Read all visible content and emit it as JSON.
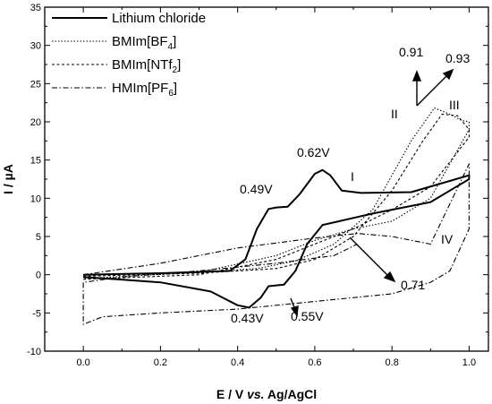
{
  "chart_data": {
    "type": "line",
    "xlabel": "E / V vs. Ag/AgCl",
    "xlabel_parts": [
      "E / V ",
      "vs.",
      " Ag/AgCl"
    ],
    "ylabel": "I / µA",
    "xlim": [
      -0.1,
      1.05
    ],
    "ylim": [
      -10,
      35
    ],
    "xticks": [
      0.0,
      0.2,
      0.4,
      0.6,
      0.8,
      1.0
    ],
    "xtick_labels": [
      "0.0",
      "0.2",
      "0.4",
      "0.6",
      "0.8",
      "1.0"
    ],
    "yticks": [
      -10,
      -5,
      0,
      5,
      10,
      15,
      20,
      25,
      30,
      35
    ],
    "ytick_labels": [
      "-10",
      "-5",
      "0",
      "5",
      "10",
      "15",
      "20",
      "25",
      "30",
      "35"
    ],
    "grid": false,
    "legend_position": "top-left",
    "series": [
      {
        "name": "Lithium chloride",
        "name_parts": [
          "Lithium chloride"
        ],
        "style": "solid",
        "x": [
          0.0,
          0.2,
          0.38,
          0.42,
          0.45,
          0.48,
          0.5,
          0.53,
          0.56,
          0.6,
          0.62,
          0.64,
          0.67,
          0.72,
          0.85,
          1.0,
          1.0,
          0.9,
          0.75,
          0.62,
          0.58,
          0.55,
          0.52,
          0.48,
          0.46,
          0.43,
          0.4,
          0.33,
          0.2,
          0.0
        ],
        "y": [
          0.0,
          0.2,
          0.5,
          2.0,
          6.0,
          8.6,
          8.8,
          8.9,
          10.5,
          13.2,
          13.7,
          13.0,
          11.0,
          10.7,
          10.8,
          13.0,
          12.5,
          9.5,
          8.0,
          6.5,
          4.0,
          0.5,
          -1.3,
          -1.5,
          -3.0,
          -4.3,
          -4.0,
          -2.2,
          -1.0,
          -0.3
        ]
      },
      {
        "name": "BMIm[BF4]",
        "name_parts": [
          "BMIm[BF",
          "4",
          "]"
        ],
        "style": "dotted",
        "x": [
          0.0,
          0.3,
          0.45,
          0.55,
          0.65,
          0.75,
          0.85,
          0.91,
          0.95,
          0.98,
          1.0,
          1.0,
          0.9,
          0.8,
          0.7,
          0.6,
          0.5,
          0.3,
          0.0
        ],
        "y": [
          0.0,
          0.3,
          0.8,
          1.8,
          4.0,
          8.5,
          17.5,
          21.8,
          21.0,
          20.2,
          20.0,
          19.0,
          10.0,
          7.0,
          6.0,
          4.5,
          2.5,
          0.3,
          -0.5
        ]
      },
      {
        "name": "BMIm[NTf2]",
        "name_parts": [
          "BMIm[NTf",
          "2",
          "]"
        ],
        "style": "dashed",
        "x": [
          0.0,
          0.3,
          0.5,
          0.6,
          0.7,
          0.8,
          0.88,
          0.93,
          0.97,
          1.0,
          1.0,
          0.9,
          0.8,
          0.7,
          0.6,
          0.5,
          0.3,
          0.0
        ],
        "y": [
          -0.2,
          0.2,
          0.8,
          2.0,
          5.0,
          11.0,
          17.5,
          21.0,
          20.8,
          19.0,
          18.0,
          11.5,
          8.5,
          6.0,
          4.0,
          2.0,
          0.0,
          -0.6
        ]
      },
      {
        "name": "HMIm[PF6]",
        "name_parts": [
          "HMIm[PF",
          "6",
          "]"
        ],
        "style": "dashdot",
        "x": [
          0.0,
          0.2,
          0.4,
          0.6,
          0.71,
          0.8,
          0.9,
          1.0,
          1.0,
          0.95,
          0.9,
          0.8,
          0.6,
          0.4,
          0.2,
          0.05,
          0.0,
          0.0,
          0.1,
          0.3,
          0.5,
          0.65,
          0.71
        ],
        "y": [
          0.0,
          1.5,
          3.5,
          4.8,
          5.4,
          5.0,
          4.0,
          14.5,
          6.0,
          0.5,
          -1.0,
          -2.5,
          -3.5,
          -4.5,
          -5.0,
          -5.5,
          -6.5,
          -1.0,
          -0.3,
          0.5,
          1.5,
          2.5,
          4.0
        ]
      }
    ],
    "annotations": {
      "peak_049": "0.49V",
      "peak_062": "0.62V",
      "label_I": "I",
      "label_II": "II",
      "label_III": "III",
      "label_IV": "IV",
      "val_091": "0.91",
      "val_093": "0.93",
      "val_071": "0.71",
      "val_043": "0.43V",
      "val_055": "0.55V"
    }
  }
}
